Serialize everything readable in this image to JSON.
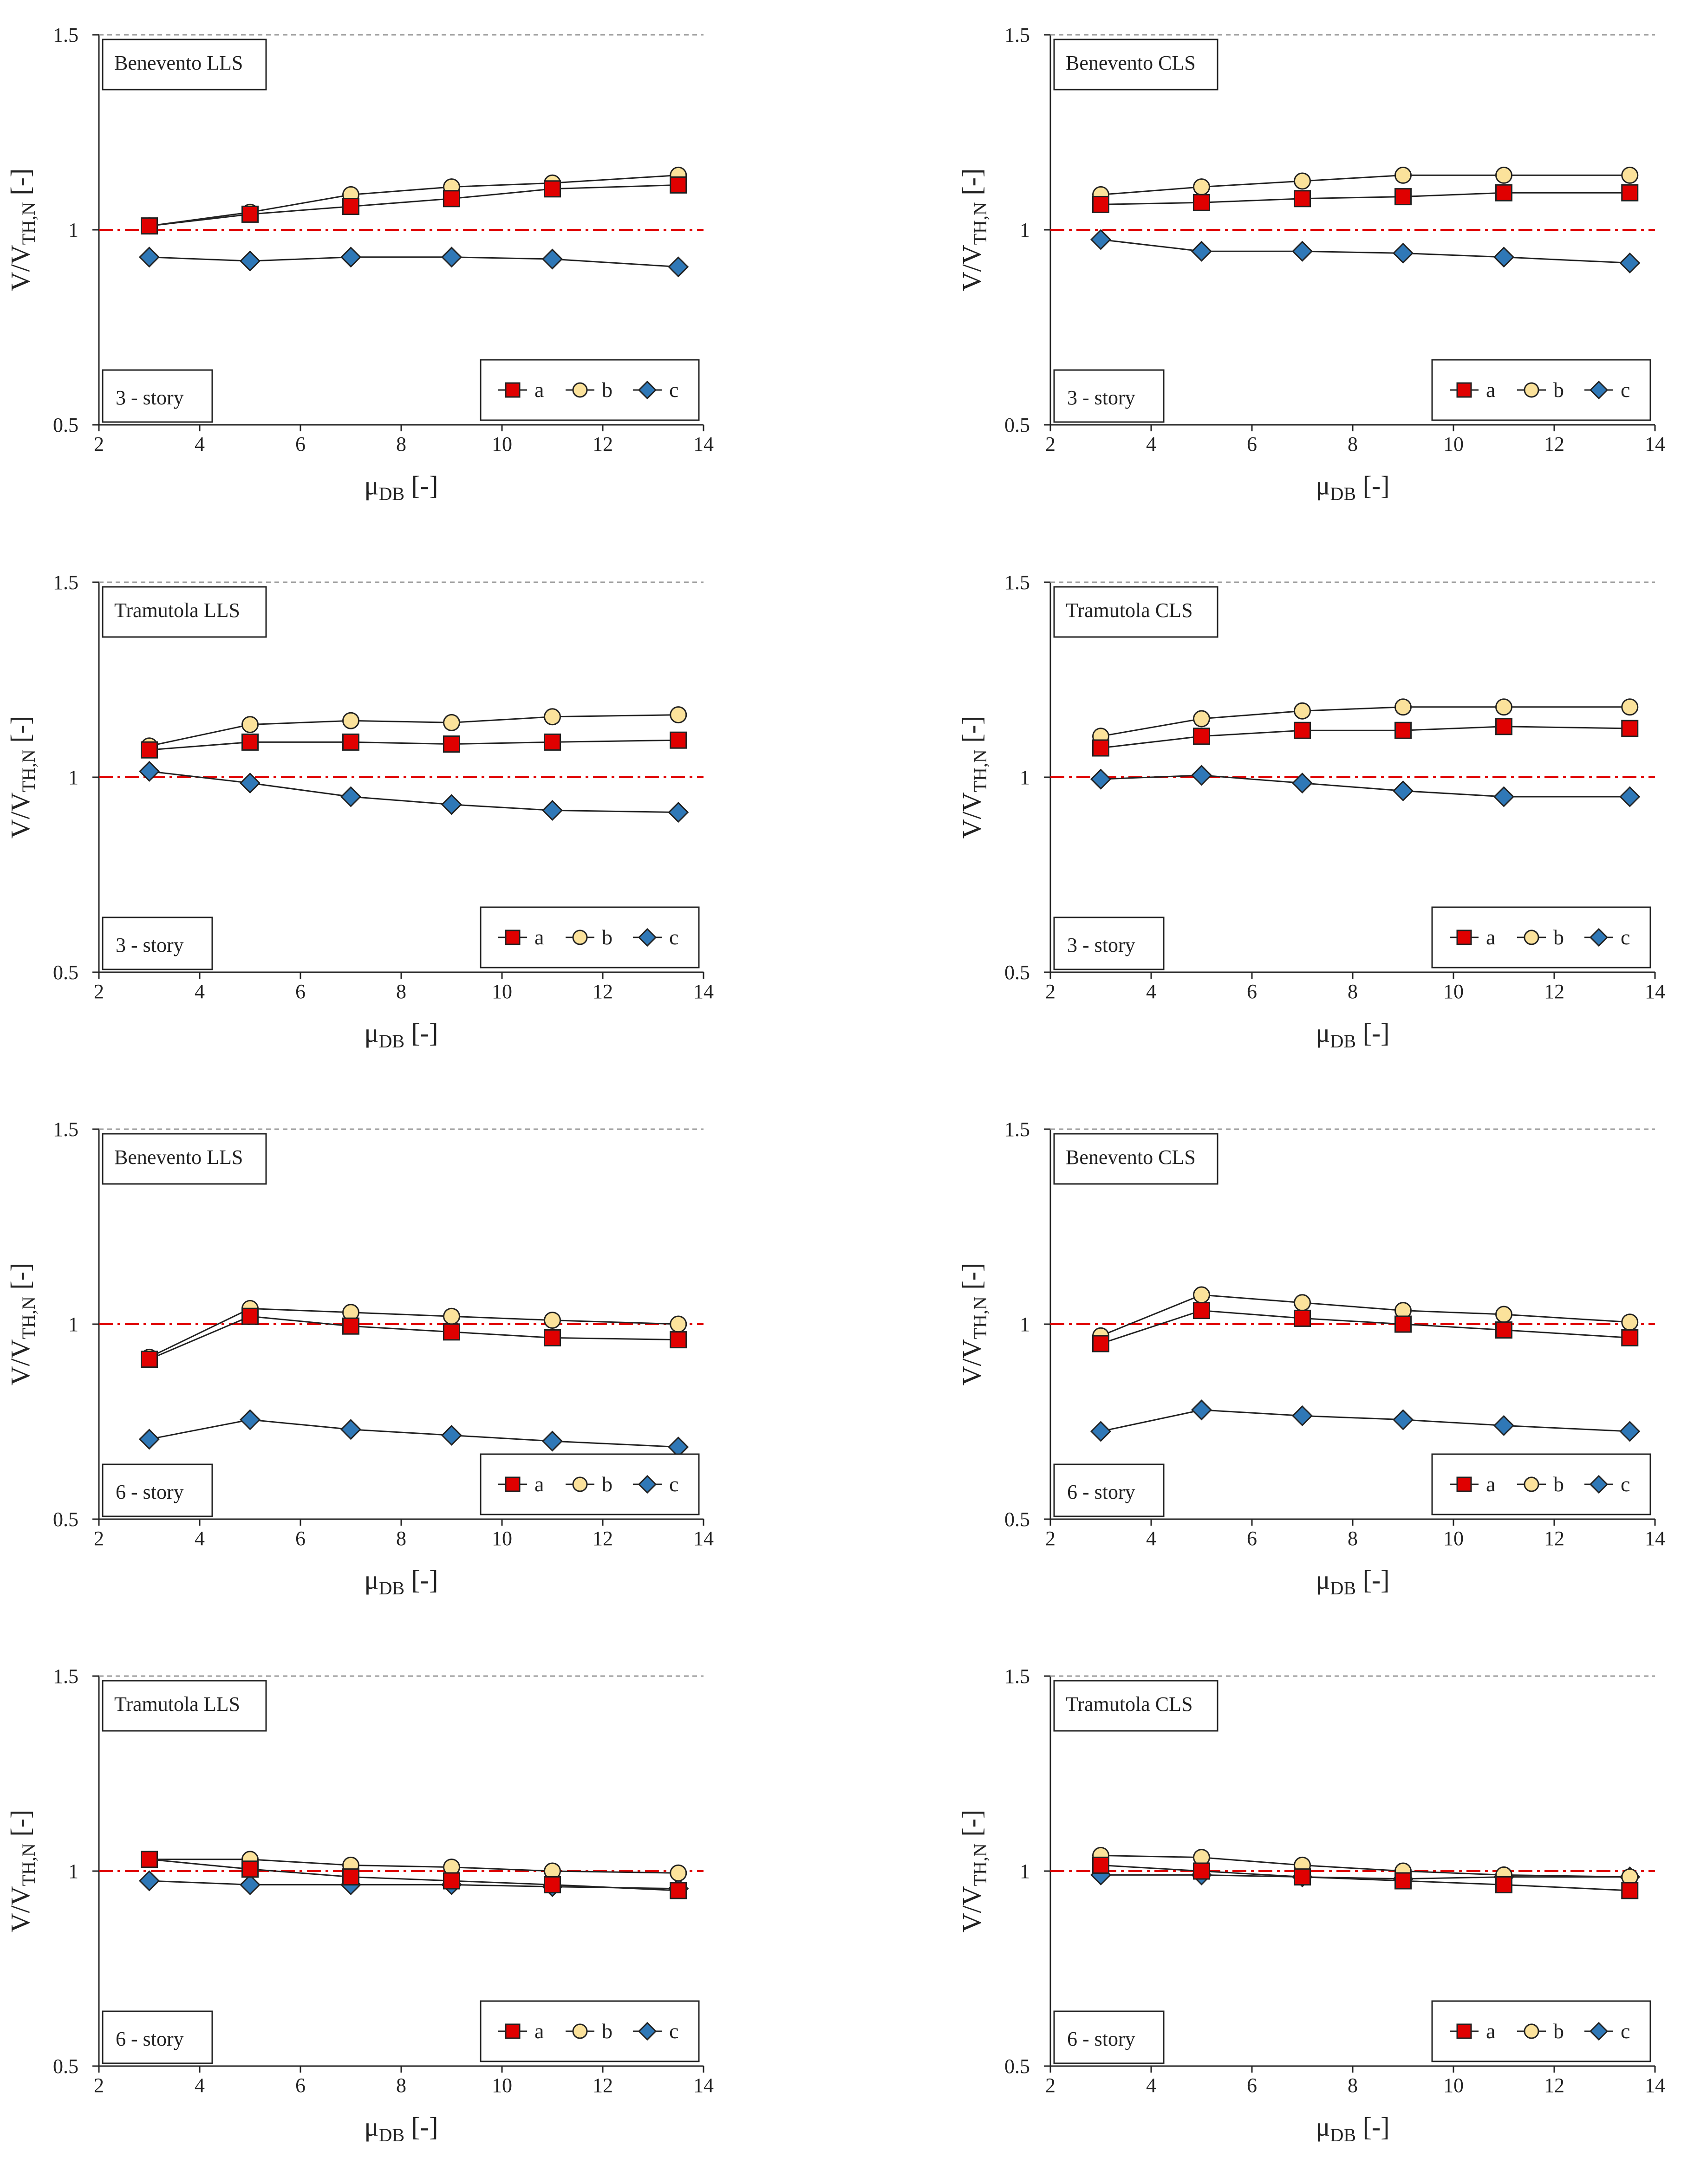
{
  "chart_data": [
    {
      "type": "line",
      "title": "Benevento LLS",
      "note": "3 - story",
      "ylabel": {
        "main": "V/V",
        "sub": "TH,N",
        "unit": " [-]"
      },
      "xlabel": {
        "main": "μ",
        "sub": "DB",
        "unit": " [-]"
      },
      "xlim": [
        2,
        14
      ],
      "ylim": [
        0.5,
        1.5
      ],
      "xticks": [
        "2",
        "4",
        "6",
        "8",
        "10",
        "12",
        "14"
      ],
      "yticks": [
        "0.5",
        "1",
        "1.5"
      ],
      "reference_line": 1,
      "x": [
        3,
        5,
        7,
        9,
        11,
        13.5
      ],
      "series": [
        {
          "name": "a",
          "values": [
            1.01,
            1.04,
            1.06,
            1.08,
            1.105,
            1.115
          ]
        },
        {
          "name": "b",
          "values": [
            1.01,
            1.045,
            1.09,
            1.11,
            1.12,
            1.14
          ]
        },
        {
          "name": "c",
          "values": [
            0.93,
            0.92,
            0.93,
            0.93,
            0.925,
            0.905
          ]
        }
      ]
    },
    {
      "type": "line",
      "title": "Benevento CLS",
      "note": "3 - story",
      "ylabel": {
        "main": "V/V",
        "sub": "TH,N",
        "unit": " [-]"
      },
      "xlabel": {
        "main": "μ",
        "sub": "DB",
        "unit": " [-]"
      },
      "xlim": [
        2,
        14
      ],
      "ylim": [
        0.5,
        1.5
      ],
      "xticks": [
        "2",
        "4",
        "6",
        "8",
        "10",
        "12",
        "14"
      ],
      "yticks": [
        "0.5",
        "1",
        "1.5"
      ],
      "reference_line": 1,
      "x": [
        3,
        5,
        7,
        9,
        11,
        13.5
      ],
      "series": [
        {
          "name": "a",
          "values": [
            1.065,
            1.07,
            1.08,
            1.085,
            1.095,
            1.095
          ]
        },
        {
          "name": "b",
          "values": [
            1.09,
            1.11,
            1.125,
            1.14,
            1.14,
            1.14
          ]
        },
        {
          "name": "c",
          "values": [
            0.975,
            0.945,
            0.945,
            0.94,
            0.93,
            0.915
          ]
        }
      ]
    },
    {
      "type": "line",
      "title": "Tramutola LLS",
      "note": "3 - story",
      "ylabel": {
        "main": "V/V",
        "sub": "TH,N",
        "unit": " [-]"
      },
      "xlabel": {
        "main": "μ",
        "sub": "DB",
        "unit": " [-]"
      },
      "xlim": [
        2,
        14
      ],
      "ylim": [
        0.5,
        1.5
      ],
      "xticks": [
        "2",
        "4",
        "6",
        "8",
        "10",
        "12",
        "14"
      ],
      "yticks": [
        "0.5",
        "1",
        "1.5"
      ],
      "reference_line": 1,
      "x": [
        3,
        5,
        7,
        9,
        11,
        13.5
      ],
      "series": [
        {
          "name": "a",
          "values": [
            1.07,
            1.09,
            1.09,
            1.085,
            1.09,
            1.095
          ]
        },
        {
          "name": "b",
          "values": [
            1.08,
            1.135,
            1.145,
            1.14,
            1.155,
            1.16
          ]
        },
        {
          "name": "c",
          "values": [
            1.015,
            0.985,
            0.95,
            0.93,
            0.915,
            0.91
          ]
        }
      ]
    },
    {
      "type": "line",
      "title": "Tramutola CLS",
      "note": "3 - story",
      "ylabel": {
        "main": "V/V",
        "sub": "TH,N",
        "unit": " [-]"
      },
      "xlabel": {
        "main": "μ",
        "sub": "DB",
        "unit": " [-]"
      },
      "xlim": [
        2,
        14
      ],
      "ylim": [
        0.5,
        1.5
      ],
      "xticks": [
        "2",
        "4",
        "6",
        "8",
        "10",
        "12",
        "14"
      ],
      "yticks": [
        "0.5",
        "1",
        "1.5"
      ],
      "reference_line": 1,
      "x": [
        3,
        5,
        7,
        9,
        11,
        13.5
      ],
      "series": [
        {
          "name": "a",
          "values": [
            1.075,
            1.105,
            1.12,
            1.12,
            1.13,
            1.125
          ]
        },
        {
          "name": "b",
          "values": [
            1.105,
            1.15,
            1.17,
            1.18,
            1.18,
            1.18
          ]
        },
        {
          "name": "c",
          "values": [
            0.995,
            1.005,
            0.985,
            0.965,
            0.95,
            0.95
          ]
        }
      ]
    },
    {
      "type": "line",
      "title": "Benevento LLS",
      "note": "6 - story",
      "ylabel": {
        "main": "V/V",
        "sub": "TH,N",
        "unit": " [-]"
      },
      "xlabel": {
        "main": "μ",
        "sub": "DB",
        "unit": " [-]"
      },
      "xlim": [
        2,
        14
      ],
      "ylim": [
        0.5,
        1.5
      ],
      "xticks": [
        "2",
        "4",
        "6",
        "8",
        "10",
        "12",
        "14"
      ],
      "yticks": [
        "0.5",
        "1",
        "1.5"
      ],
      "reference_line": 1,
      "x": [
        3,
        5,
        7,
        9,
        11,
        13.5
      ],
      "series": [
        {
          "name": "a",
          "values": [
            0.91,
            1.02,
            0.995,
            0.98,
            0.965,
            0.96
          ]
        },
        {
          "name": "b",
          "values": [
            0.915,
            1.04,
            1.03,
            1.02,
            1.01,
            1.0
          ]
        },
        {
          "name": "c",
          "values": [
            0.705,
            0.755,
            0.73,
            0.715,
            0.7,
            0.685
          ]
        }
      ]
    },
    {
      "type": "line",
      "title": "Benevento CLS",
      "note": "6 - story",
      "ylabel": {
        "main": "V/V",
        "sub": "TH,N",
        "unit": " [-]"
      },
      "xlabel": {
        "main": "μ",
        "sub": "DB",
        "unit": " [-]"
      },
      "xlim": [
        2,
        14
      ],
      "ylim": [
        0.5,
        1.5
      ],
      "xticks": [
        "2",
        "4",
        "6",
        "8",
        "10",
        "12",
        "14"
      ],
      "yticks": [
        "0.5",
        "1",
        "1.5"
      ],
      "reference_line": 1,
      "x": [
        3,
        5,
        7,
        9,
        11,
        13.5
      ],
      "series": [
        {
          "name": "a",
          "values": [
            0.95,
            1.035,
            1.015,
            1.0,
            0.985,
            0.965
          ]
        },
        {
          "name": "b",
          "values": [
            0.97,
            1.075,
            1.055,
            1.035,
            1.025,
            1.005
          ]
        },
        {
          "name": "c",
          "values": [
            0.725,
            0.78,
            0.765,
            0.755,
            0.74,
            0.725
          ]
        }
      ]
    },
    {
      "type": "line",
      "title": "Tramutola LLS",
      "note": "6 - story",
      "ylabel": {
        "main": "V/V",
        "sub": "TH,N",
        "unit": " [-]"
      },
      "xlabel": {
        "main": "μ",
        "sub": "DB",
        "unit": " [-]"
      },
      "xlim": [
        2,
        14
      ],
      "ylim": [
        0.5,
        1.5
      ],
      "xticks": [
        "2",
        "4",
        "6",
        "8",
        "10",
        "12",
        "14"
      ],
      "yticks": [
        "0.5",
        "1",
        "1.5"
      ],
      "reference_line": 1,
      "x": [
        3,
        5,
        7,
        9,
        11,
        13.5
      ],
      "series": [
        {
          "name": "a",
          "values": [
            1.03,
            1.005,
            0.985,
            0.975,
            0.965,
            0.95
          ]
        },
        {
          "name": "b",
          "values": [
            1.03,
            1.03,
            1.015,
            1.01,
            1.0,
            0.995
          ]
        },
        {
          "name": "c",
          "values": [
            0.975,
            0.965,
            0.965,
            0.965,
            0.96,
            0.955
          ]
        }
      ]
    },
    {
      "type": "line",
      "title": "Tramutola CLS",
      "note": "6 - story",
      "ylabel": {
        "main": "V/V",
        "sub": "TH,N",
        "unit": " [-]"
      },
      "xlabel": {
        "main": "μ",
        "sub": "DB",
        "unit": " [-]"
      },
      "xlim": [
        2,
        14
      ],
      "ylim": [
        0.5,
        1.5
      ],
      "xticks": [
        "2",
        "4",
        "6",
        "8",
        "10",
        "12",
        "14"
      ],
      "yticks": [
        "0.5",
        "1",
        "1.5"
      ],
      "reference_line": 1,
      "x": [
        3,
        5,
        7,
        9,
        11,
        13.5
      ],
      "series": [
        {
          "name": "a",
          "values": [
            1.015,
            1.0,
            0.985,
            0.975,
            0.965,
            0.95
          ]
        },
        {
          "name": "b",
          "values": [
            1.04,
            1.035,
            1.015,
            1.0,
            0.99,
            0.985
          ]
        },
        {
          "name": "c",
          "values": [
            0.99,
            0.99,
            0.985,
            0.98,
            0.985,
            0.985
          ]
        }
      ]
    }
  ],
  "styles": {
    "colors": {
      "a": "#e00000",
      "b": "#fbe29b",
      "c": "#2f78b7",
      "line": "#222222",
      "reference": "#e00000",
      "grid": "#999999"
    },
    "markers": {
      "a": "square",
      "b": "circle",
      "c": "diamond"
    }
  }
}
